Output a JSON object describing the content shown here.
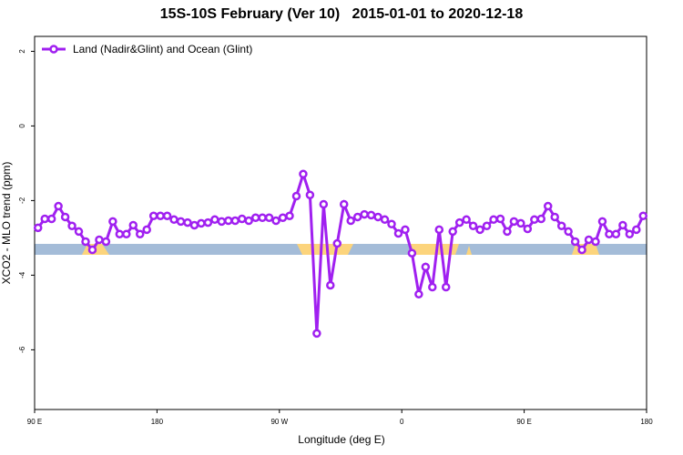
{
  "chart_data": {
    "type": "line",
    "title": "15S-10S February (Ver 10)   2015-01-01 to 2020-12-18",
    "x_label": "Longitude (deg E)",
    "y_label": "XCO2 - MLO trend (ppm)",
    "xlim": [
      90,
      540
    ],
    "ylim": [
      -7.6,
      2.4
    ],
    "xticks": [
      {
        "value": 90,
        "label": "90 E"
      },
      180,
      {
        "value": 270,
        "label": "90 W"
      },
      {
        "value": 360,
        "label": "0"
      },
      {
        "value": 450,
        "label": "90 E"
      },
      {
        "value": 540,
        "label": "180"
      }
    ],
    "yticks": [
      2,
      0,
      -2,
      -4,
      -6
    ],
    "legend": "top-left",
    "x": [
      92.5,
      97.5,
      102.5,
      107.5,
      112.5,
      117.5,
      122.5,
      127.5,
      132.5,
      137.5,
      142.5,
      147.5,
      152.5,
      157.5,
      162.5,
      167.5,
      172.5,
      177.5,
      182.5,
      187.5,
      192.5,
      197.5,
      202.5,
      207.5,
      212.5,
      217.5,
      222.5,
      227.5,
      232.5,
      237.5,
      242.5,
      247.5,
      252.5,
      257.5,
      262.5,
      267.5,
      272.5,
      277.5,
      282.5,
      287.5,
      292.5,
      297.5,
      302.5,
      307.5,
      312.5,
      317.5,
      322.5,
      327.5,
      332.5,
      337.5,
      342.5,
      347.5,
      352.5,
      357.5,
      362.5,
      367.5,
      372.5,
      377.5,
      382.5,
      387.5,
      392.5,
      397.5,
      402.5,
      407.5,
      412.5,
      417.5,
      422.5,
      427.5,
      432.5,
      437.5,
      442.5,
      447.5,
      452.5,
      457.5,
      462.5,
      467.5,
      472.5,
      477.5,
      482.5,
      487.5,
      492.5,
      497.5,
      502.5,
      507.5,
      512.5,
      517.5,
      522.5,
      527.5,
      532.5,
      537.5
    ],
    "series": [
      {
        "name": "Land (Nadir&Glint) and Ocean (Glint)",
        "color": "#a020f0",
        "values": [
          -2.73,
          -2.49,
          -2.49,
          -2.15,
          -2.44,
          -2.68,
          -2.83,
          -3.1,
          -3.32,
          -3.05,
          -3.1,
          -2.56,
          -2.9,
          -2.9,
          -2.66,
          -2.9,
          -2.78,
          -2.41,
          -2.41,
          -2.41,
          -2.51,
          -2.56,
          -2.59,
          -2.66,
          -2.61,
          -2.59,
          -2.51,
          -2.56,
          -2.54,
          -2.54,
          -2.49,
          -2.54,
          -2.46,
          -2.46,
          -2.46,
          -2.54,
          -2.46,
          -2.41,
          -1.88,
          -1.29,
          -1.85,
          -5.56,
          -2.1,
          -4.27,
          -3.15,
          -2.1,
          -2.54,
          -2.44,
          -2.37,
          -2.39,
          -2.44,
          -2.51,
          -2.63,
          -2.88,
          -2.78,
          -3.41,
          -4.51,
          -3.78,
          -4.32,
          -2.78,
          -4.32,
          -2.83,
          -2.59,
          -2.51,
          -2.68,
          -2.78,
          -2.68,
          -2.51,
          -2.49,
          -2.83,
          -2.56,
          -2.61,
          -2.76,
          -2.51,
          -2.49,
          -2.15,
          -2.44,
          -2.68,
          -2.83,
          -3.1,
          -3.32,
          -3.05,
          -3.1,
          -2.56,
          -2.9,
          -2.9,
          -2.66,
          -2.9,
          -2.78,
          -2.41
        ]
      }
    ]
  }
}
